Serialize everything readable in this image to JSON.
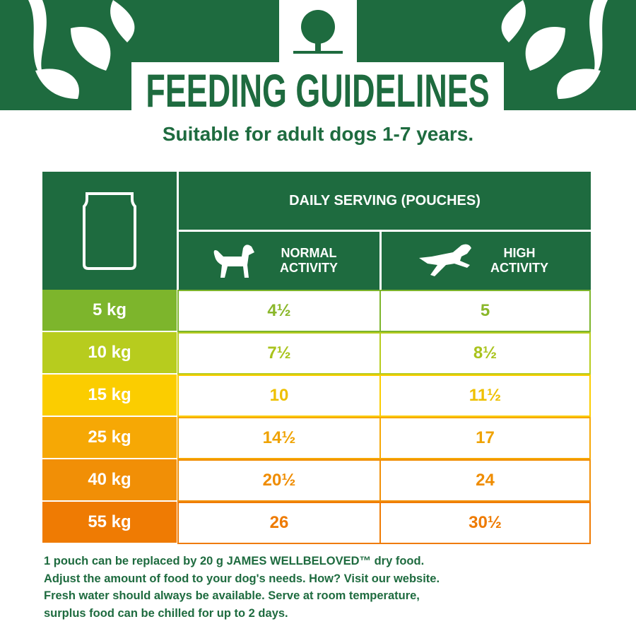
{
  "header": {
    "title": "FEEDING GUIDELINES",
    "subtitle": "Suitable for adult dogs 1-7 years."
  },
  "table": {
    "group_header": "DAILY SERVING (POUCHES)",
    "columns": [
      "NORMAL ACTIVITY",
      "HIGH ACTIVITY"
    ],
    "rows": [
      [
        "5 kg",
        "4½",
        "5"
      ],
      [
        "10 kg",
        "7½",
        "8½"
      ],
      [
        "15 kg",
        "10",
        "11½"
      ],
      [
        "25 kg",
        "14½",
        "17"
      ],
      [
        "40 kg",
        "20½",
        "24"
      ],
      [
        "55 kg",
        "26",
        "30½"
      ]
    ]
  },
  "footer": {
    "lines": [
      "1 pouch can be replaced by 20 g JAMES WELLBELOVED™ dry food.",
      "Adjust the amount of food to your dog's needs. How? Visit our website.",
      "Fresh water should always be available. Serve at room temperature,",
      "surplus food can be chilled for up to 2 days."
    ]
  }
}
